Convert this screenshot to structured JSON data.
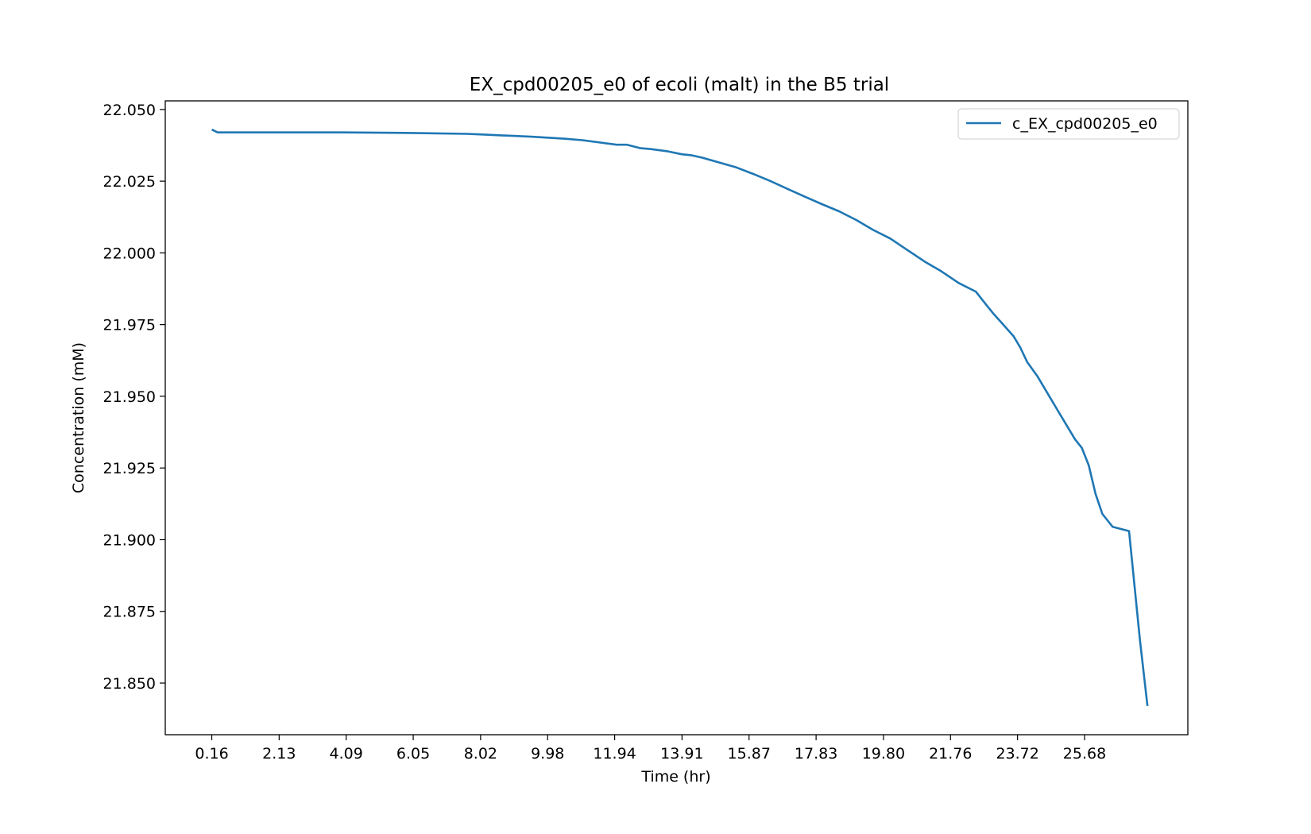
{
  "chart_data": {
    "type": "line",
    "title": "EX_cpd00205_e0 of ecoli (malt) in the B5 trial",
    "xlabel": "Time (hr)",
    "ylabel": "Concentration (mM)",
    "xlim": [
      -1.2,
      28.7
    ],
    "ylim": [
      21.832,
      22.053
    ],
    "x_ticks": [
      0.16,
      2.13,
      4.09,
      6.05,
      8.02,
      9.98,
      11.94,
      13.91,
      15.87,
      17.83,
      19.8,
      21.76,
      23.72,
      25.68
    ],
    "x_tick_labels": [
      "0.16",
      "2.13",
      "4.09",
      "6.05",
      "8.02",
      "9.98",
      "11.94",
      "13.91",
      "15.87",
      "17.83",
      "19.80",
      "21.76",
      "23.72",
      "25.68"
    ],
    "y_ticks": [
      21.85,
      21.875,
      21.9,
      21.925,
      21.95,
      21.975,
      22.0,
      22.025,
      22.05
    ],
    "y_tick_labels": [
      "21.850",
      "21.875",
      "21.900",
      "21.925",
      "21.950",
      "21.975",
      "22.000",
      "22.025",
      "22.050"
    ],
    "grid": false,
    "legend_position": "top-right",
    "series": [
      {
        "name": "c_EX_cpd00205_e0",
        "color": "#1f77b4",
        "x": [
          0.16,
          0.33,
          1.0,
          2.0,
          4.0,
          6.0,
          7.6,
          8.0,
          9.5,
          10.5,
          11.0,
          12.0,
          12.3,
          12.7,
          13.0,
          13.5,
          13.9,
          14.2,
          14.5,
          15.0,
          15.5,
          16.0,
          16.5,
          17.0,
          17.5,
          18.0,
          18.5,
          19.0,
          19.5,
          20.0,
          20.5,
          21.0,
          21.5,
          22.0,
          22.5,
          22.8,
          23.0,
          23.3,
          23.6,
          23.8,
          24.0,
          24.3,
          24.6,
          24.9,
          25.0,
          25.2,
          25.4,
          25.6,
          25.8,
          26.0,
          26.2,
          26.5,
          26.98,
          27.3,
          27.52
        ],
        "values": [
          22.043,
          22.042,
          22.042,
          22.042,
          22.042,
          22.0418,
          22.0415,
          22.0413,
          22.0405,
          22.0398,
          22.0393,
          22.0377,
          22.0377,
          22.0365,
          22.0362,
          22.0354,
          22.0344,
          22.034,
          22.0332,
          22.0315,
          22.0298,
          22.0275,
          22.025,
          22.0223,
          22.0196,
          22.017,
          22.0145,
          22.0115,
          22.008,
          22.005,
          22.001,
          21.997,
          21.9935,
          21.9895,
          21.9865,
          21.982,
          21.979,
          21.975,
          21.971,
          21.967,
          21.962,
          21.957,
          21.951,
          21.945,
          21.943,
          21.939,
          21.935,
          21.932,
          21.926,
          21.916,
          21.909,
          21.9045,
          21.903,
          21.865,
          21.842
        ]
      }
    ]
  }
}
